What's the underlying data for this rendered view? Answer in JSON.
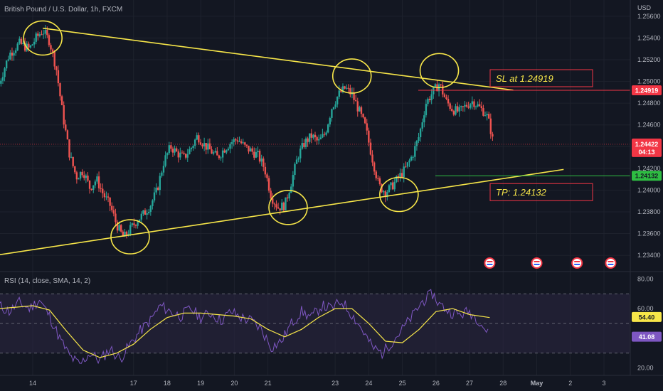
{
  "header": {
    "symbol_title": "British Pound / U.S. Dollar, 1h, FXCM",
    "currency": "USD"
  },
  "colors": {
    "background": "#131722",
    "up": "#26a69a",
    "down": "#ef5350",
    "trendline": "#f7e649",
    "sl_line": "#f23645",
    "tp_line": "#2ebd42",
    "rsi_line": "#7e57c2",
    "rsi_ma": "#f7e649",
    "rsi_band": "#2a2540"
  },
  "chart_data": [
    {
      "type": "candlestick",
      "ylim": [
        1.2325,
        1.2575
      ],
      "y_ticks": [
        "1.25600",
        "1.25400",
        "1.25200",
        "1.25000",
        "1.24800",
        "1.24600",
        "1.24400",
        "1.24200",
        "1.24000",
        "1.23800",
        "1.23600",
        "1.23400"
      ],
      "x_ticks": [
        {
          "label": "14",
          "t": 14
        },
        {
          "label": "17",
          "t": 17
        },
        {
          "label": "18",
          "t": 18
        },
        {
          "label": "19",
          "t": 19
        },
        {
          "label": "20",
          "t": 20
        },
        {
          "label": "21",
          "t": 21
        },
        {
          "label": "23",
          "t": 23
        },
        {
          "label": "24",
          "t": 24
        },
        {
          "label": "25",
          "t": 25
        },
        {
          "label": "26",
          "t": 26
        },
        {
          "label": "27",
          "t": 27
        },
        {
          "label": "28",
          "t": 28
        },
        {
          "label": "May",
          "t": 29
        },
        {
          "label": "2",
          "t": 30
        },
        {
          "label": "3",
          "t": 31
        }
      ],
      "price_path": [
        [
          13.0,
          1.2498
        ],
        [
          13.3,
          1.2525
        ],
        [
          13.6,
          1.2535
        ],
        [
          13.9,
          1.253
        ],
        [
          14.1,
          1.254
        ],
        [
          14.3,
          1.2547
        ],
        [
          14.5,
          1.2537
        ],
        [
          14.7,
          1.2512
        ],
        [
          14.9,
          1.2468
        ],
        [
          15.1,
          1.2432
        ],
        [
          15.3,
          1.2412
        ],
        [
          15.5,
          1.2418
        ],
        [
          15.7,
          1.2402
        ],
        [
          15.9,
          1.241
        ],
        [
          16.1,
          1.2396
        ],
        [
          16.3,
          1.2386
        ],
        [
          16.5,
          1.2368
        ],
        [
          16.7,
          1.2356
        ],
        [
          16.9,
          1.2364
        ],
        [
          17.1,
          1.2372
        ],
        [
          17.3,
          1.2378
        ],
        [
          17.5,
          1.2386
        ],
        [
          17.7,
          1.24
        ],
        [
          17.9,
          1.2426
        ],
        [
          18.1,
          1.244
        ],
        [
          18.3,
          1.2434
        ],
        [
          18.5,
          1.243
        ],
        [
          18.7,
          1.2438
        ],
        [
          18.9,
          1.245
        ],
        [
          19.1,
          1.2442
        ],
        [
          19.3,
          1.2436
        ],
        [
          19.5,
          1.243
        ],
        [
          19.7,
          1.2438
        ],
        [
          19.9,
          1.2444
        ],
        [
          20.1,
          1.2447
        ],
        [
          20.3,
          1.244
        ],
        [
          20.5,
          1.2436
        ],
        [
          20.7,
          1.2432
        ],
        [
          20.9,
          1.242
        ],
        [
          21.1,
          1.2394
        ],
        [
          21.3,
          1.2384
        ],
        [
          21.5,
          1.2386
        ],
        [
          21.7,
          1.2408
        ],
        [
          21.9,
          1.2432
        ],
        [
          22.1,
          1.2444
        ],
        [
          22.3,
          1.245
        ],
        [
          22.5,
          1.2444
        ],
        [
          22.7,
          1.2452
        ],
        [
          22.9,
          1.2476
        ],
        [
          23.1,
          1.2488
        ],
        [
          23.3,
          1.2494
        ],
        [
          23.5,
          1.2488
        ],
        [
          23.7,
          1.2474
        ],
        [
          23.9,
          1.2458
        ],
        [
          24.1,
          1.243
        ],
        [
          24.3,
          1.2404
        ],
        [
          24.5,
          1.2398
        ],
        [
          24.7,
          1.2404
        ],
        [
          24.9,
          1.2412
        ],
        [
          25.1,
          1.242
        ],
        [
          25.3,
          1.2432
        ],
        [
          25.5,
          1.245
        ],
        [
          25.7,
          1.248
        ],
        [
          25.9,
          1.249
        ],
        [
          26.1,
          1.2498
        ],
        [
          26.3,
          1.2482
        ],
        [
          26.5,
          1.2474
        ],
        [
          26.7,
          1.2472
        ],
        [
          26.9,
          1.2478
        ],
        [
          27.1,
          1.2482
        ],
        [
          27.3,
          1.2476
        ],
        [
          27.5,
          1.247
        ],
        [
          27.6,
          1.246
        ],
        [
          27.7,
          1.2444
        ]
      ],
      "trendlines": [
        {
          "name": "upper",
          "from": [
            14.3,
            1.2549
          ],
          "to": [
            28.3,
            1.2492
          ]
        },
        {
          "name": "lower",
          "from": [
            12.9,
            1.234
          ],
          "to": [
            29.8,
            1.2419
          ]
        }
      ],
      "highlight_circles": [
        {
          "t": 14.3,
          "p": 1.254
        },
        {
          "t": 16.9,
          "p": 1.2357
        },
        {
          "t": 21.6,
          "p": 1.2384
        },
        {
          "t": 23.5,
          "p": 1.2505
        },
        {
          "t": 24.9,
          "p": 1.2396
        },
        {
          "t": 26.1,
          "p": 1.251
        }
      ],
      "levels": [
        {
          "name": "sl",
          "price": 1.24919,
          "tag": "1.24919",
          "label": "SL at 1.24919"
        },
        {
          "name": "tp",
          "price": 1.24132,
          "tag": "1.24132",
          "label": "TP: 1.24132"
        }
      ],
      "last_price": {
        "price": 1.24422,
        "tag": "1.24422",
        "countdown": "04:13"
      },
      "event_markers": [
        27.6,
        29.0,
        30.2,
        31.2
      ]
    },
    {
      "type": "line",
      "title": "RSI (14, close, SMA, 14, 2)",
      "ylim": [
        15,
        85
      ],
      "y_ticks": [
        "80.00",
        "60.00",
        "20.00"
      ],
      "band": [
        30,
        70
      ],
      "rsi_value": "41.08",
      "ma_value": "54.40",
      "rsi_series": [
        [
          13.0,
          62
        ],
        [
          13.3,
          58
        ],
        [
          13.6,
          64
        ],
        [
          13.9,
          60
        ],
        [
          14.2,
          66
        ],
        [
          14.5,
          55
        ],
        [
          14.8,
          40
        ],
        [
          15.1,
          28
        ],
        [
          15.4,
          22
        ],
        [
          15.7,
          30
        ],
        [
          16.0,
          25
        ],
        [
          16.3,
          33
        ],
        [
          16.6,
          26
        ],
        [
          16.9,
          36
        ],
        [
          17.2,
          45
        ],
        [
          17.5,
          52
        ],
        [
          17.8,
          62
        ],
        [
          18.1,
          58
        ],
        [
          18.4,
          55
        ],
        [
          18.7,
          60
        ],
        [
          19.0,
          54
        ],
        [
          19.3,
          57
        ],
        [
          19.6,
          52
        ],
        [
          19.9,
          58
        ],
        [
          20.2,
          54
        ],
        [
          20.5,
          52
        ],
        [
          20.8,
          46
        ],
        [
          21.1,
          34
        ],
        [
          21.4,
          38
        ],
        [
          21.7,
          50
        ],
        [
          22.0,
          58
        ],
        [
          22.3,
          54
        ],
        [
          22.6,
          62
        ],
        [
          22.9,
          60
        ],
        [
          23.2,
          65
        ],
        [
          23.5,
          56
        ],
        [
          23.8,
          46
        ],
        [
          24.1,
          34
        ],
        [
          24.4,
          30
        ],
        [
          24.7,
          38
        ],
        [
          25.0,
          46
        ],
        [
          25.3,
          55
        ],
        [
          25.6,
          65
        ],
        [
          25.9,
          70
        ],
        [
          26.1,
          63
        ],
        [
          26.4,
          58
        ],
        [
          26.7,
          56
        ],
        [
          27.0,
          58
        ],
        [
          27.3,
          52
        ],
        [
          27.6,
          41
        ]
      ],
      "ma_series": [
        [
          13.0,
          60
        ],
        [
          13.5,
          61
        ],
        [
          14.0,
          62
        ],
        [
          14.5,
          59
        ],
        [
          15.0,
          45
        ],
        [
          15.5,
          32
        ],
        [
          16.0,
          27
        ],
        [
          16.5,
          30
        ],
        [
          17.0,
          36
        ],
        [
          17.5,
          46
        ],
        [
          18.0,
          54
        ],
        [
          18.5,
          57
        ],
        [
          19.0,
          57
        ],
        [
          19.5,
          56
        ],
        [
          20.0,
          55
        ],
        [
          20.5,
          53
        ],
        [
          21.0,
          46
        ],
        [
          21.5,
          41
        ],
        [
          22.0,
          46
        ],
        [
          22.5,
          54
        ],
        [
          23.0,
          60
        ],
        [
          23.5,
          60
        ],
        [
          24.0,
          50
        ],
        [
          24.5,
          38
        ],
        [
          25.0,
          37
        ],
        [
          25.5,
          46
        ],
        [
          26.0,
          58
        ],
        [
          26.5,
          60
        ],
        [
          27.0,
          56
        ],
        [
          27.6,
          54
        ]
      ]
    }
  ]
}
